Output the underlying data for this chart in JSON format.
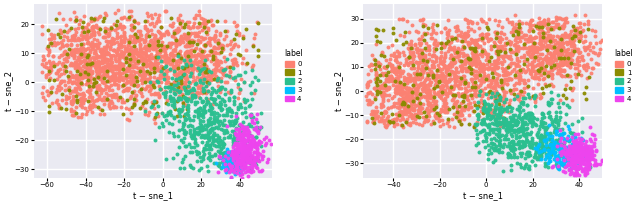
{
  "figsize": [
    6.4,
    2.04
  ],
  "dpi": 100,
  "colors": [
    "#FC8172",
    "#8B8B00",
    "#2ABF8F",
    "#00BFFF",
    "#EE44EE"
  ],
  "label_names": [
    "0",
    "1",
    "2",
    "3",
    "4"
  ],
  "xlabel": "t − sne_1",
  "ylabel": "t − sne_2",
  "legend_title": "label",
  "marker_size": 8,
  "alpha": 0.95,
  "background_color": "#EAEAF2",
  "grid_color": "white",
  "plot1": {
    "xlim": [
      -67,
      57
    ],
    "ylim": [
      -33,
      27
    ],
    "xticks": [
      -60,
      -40,
      -20,
      0,
      20,
      40
    ],
    "yticks": [
      -30,
      -20,
      -10,
      0,
      10,
      20
    ]
  },
  "plot2": {
    "xlim": [
      -53,
      50
    ],
    "ylim": [
      -36,
      36
    ],
    "xticks": [
      -40,
      -20,
      0,
      20,
      40
    ],
    "yticks": [
      -30,
      -20,
      -10,
      0,
      10,
      20,
      30
    ]
  }
}
